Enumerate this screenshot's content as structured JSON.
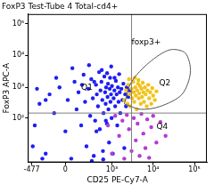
{
  "chart_data": {
    "type": "scatter",
    "title": "FoxP3 Test-Tube 4 Total-cd4+",
    "x_label": "CD25 PE-Cy7-A",
    "y_label": "FoxP3 APC-A",
    "xlim": [
      -600,
      200000
    ],
    "ylim": [
      -200,
      200000
    ],
    "xticks": [
      -477,
      0,
      {
        "value": 1000,
        "label": "10³"
      },
      {
        "value": 10000,
        "label": "10⁴"
      },
      {
        "value": 100000,
        "label": "10⁵"
      }
    ],
    "yticks": [
      {
        "value": 100,
        "label": "10²"
      },
      {
        "value": 1000,
        "label": "10³"
      },
      {
        "value": 10000,
        "label": "10⁴"
      },
      {
        "value": 100000,
        "label": "10⁵"
      }
    ],
    "grid": false,
    "series": [
      {
        "color": "#1e1ef5",
        "x": [
          -400,
          -300,
          -200,
          -150,
          -100,
          -50,
          0,
          20,
          50,
          80,
          100,
          120,
          150,
          180,
          200,
          220,
          250,
          280,
          300,
          330,
          350,
          380,
          400,
          420,
          450,
          480,
          500,
          520,
          550,
          580,
          600,
          620,
          650,
          680,
          700,
          720,
          750,
          780,
          800,
          820,
          850,
          880,
          900,
          920,
          950,
          980,
          1000,
          1050,
          1100,
          1150,
          1200,
          1250,
          1300,
          1350,
          1400,
          1450,
          1500,
          1550,
          1600,
          1700,
          1800,
          1900,
          2000,
          2100,
          2200,
          2300,
          2500,
          2700,
          -350,
          -250,
          -80,
          60,
          160,
          260,
          360,
          560,
          760,
          960,
          1160,
          310,
          410,
          610,
          710,
          -450,
          -200
        ],
        "y": [
          50,
          300,
          -100,
          600,
          150,
          1000,
          20,
          400,
          -150,
          1500,
          200,
          700,
          50,
          2500,
          350,
          -50,
          900,
          120,
          1800,
          450,
          -120,
          80,
          1200,
          600,
          250,
          3000,
          30,
          800,
          1500,
          400,
          -80,
          150,
          2200,
          700,
          300,
          1000,
          60,
          500,
          1300,
          200,
          -30,
          900,
          2000,
          350,
          600,
          100,
          1100,
          -100,
          450,
          800,
          250,
          1600,
          600,
          50,
          1000,
          350,
          2600,
          700,
          150,
          900,
          400,
          1300,
          -60,
          600,
          250,
          1000,
          500,
          800,
          900,
          -150,
          2000,
          4000,
          1200,
          5000,
          1500,
          3500,
          2800,
          4500,
          2000,
          -180,
          20,
          -160,
          80,
          -50,
          400
        ]
      },
      {
        "color": "#b43cd2",
        "x": [
          800,
          1000,
          1200,
          1500,
          1800,
          2000,
          2300,
          2600,
          3000,
          3400,
          3800,
          4200,
          4700,
          5200,
          5800,
          6500,
          7200,
          8000,
          9000,
          10000,
          12000,
          15000,
          20000
        ],
        "y": [
          50,
          -100,
          120,
          0,
          80,
          -150,
          130,
          30,
          -80,
          100,
          -20,
          60,
          -120,
          140,
          10,
          -60,
          90,
          -140,
          40,
          120,
          -30,
          70,
          0
        ]
      },
      {
        "color": "#f2c21a",
        "x": [
          2000,
          2200,
          2400,
          2500,
          2700,
          2800,
          3000,
          3100,
          3300,
          3400,
          3500,
          3700,
          3800,
          4000,
          4100,
          4300,
          4500,
          4600,
          4800,
          5000,
          5200,
          5400,
          5600,
          5800,
          6000,
          6300,
          6600,
          7000,
          7300,
          7600,
          8000,
          8500,
          9000,
          9500,
          10000,
          11000,
          12000,
          2600,
          3600,
          4400
        ],
        "y": [
          400,
          800,
          300,
          1200,
          600,
          250,
          900,
          450,
          1500,
          700,
          350,
          1000,
          550,
          200,
          800,
          1300,
          450,
          650,
          1100,
          300,
          900,
          500,
          1400,
          700,
          350,
          1000,
          600,
          250,
          800,
          1200,
          450,
          700,
          300,
          950,
          550,
          400,
          750,
          1800,
          2000,
          1700
        ]
      }
    ],
    "quadrant": {
      "x": 3000,
      "y": 150,
      "color": "#7f7f7f"
    },
    "gate": {
      "x": [
        2000,
        3000,
        8000,
        25000,
        60000,
        80000,
        50000,
        15000,
        5000
      ],
      "y": [
        300,
        1500,
        6000,
        15000,
        12000,
        3000,
        600,
        250,
        200
      ]
    },
    "annotations": [
      {
        "text": "foxp3+",
        "x": 3000,
        "y": 25000
      },
      {
        "text": "Q1",
        "x": 150,
        "y": 1000
      },
      {
        "text": "Q2",
        "x": 14000,
        "y": 1300
      },
      {
        "text": "Q4",
        "x": 12000,
        "y": 40
      }
    ]
  }
}
